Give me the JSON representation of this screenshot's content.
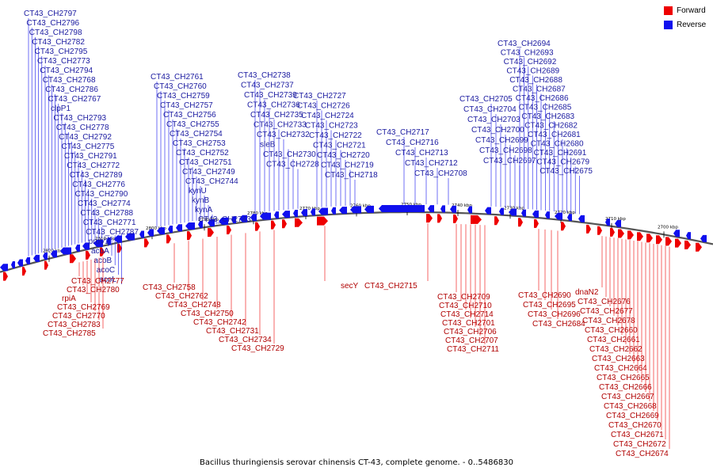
{
  "legend": {
    "forward": {
      "label": "Forward",
      "color": "#ee0000"
    },
    "reverse": {
      "label": "Reverse",
      "color": "#1010ee"
    }
  },
  "caption": "Bacillus thuringiensis serovar chinensis CT-43, complete genome. - 0..5486830",
  "colors": {
    "forward": "#ee0000",
    "reverse": "#1010ee",
    "axis": "#555555"
  },
  "diagram_data": {
    "type": "linear-genome-map",
    "ticks": [
      "2820 kbp",
      "2810 kbp",
      "2800 kbp",
      "2790 kbp",
      "2780 kbp",
      "2770 kbp",
      "2760 kbp",
      "2750 kbp",
      "2740 kbp",
      "2730 kbp",
      "2720 kbp",
      "2710 kbp",
      "2700 kbp"
    ],
    "reverse_labels": [
      "CT43_CH2797",
      "CT43_CH2796",
      "CT43_CH2798",
      "CT43_CH2782",
      "CT43_CH2795",
      "CT43_CH2773",
      "CT43_CH2794",
      "CT43_CH2768",
      "CT43_CH2786",
      "CT43_CH2767",
      "clpP1",
      "CT43_CH2793",
      "CT43_CH2778",
      "CT43_CH2792",
      "CT43_CH2775",
      "CT43_CH2791",
      "CT43_CH2772",
      "CT43_CH2789",
      "CT43_CH2776",
      "CT43_CH2790",
      "CT43_CH2774",
      "CT43_CH2788",
      "CT43_CH2771",
      "CT43_CH2787",
      "proV2",
      "acoA",
      "acoB",
      "acoC",
      "acoL",
      "CT43_CH2761",
      "CT43_CH2760",
      "CT43_CH2759",
      "CT43_CH2757",
      "CT43_CH2756",
      "CT43_CH2755",
      "CT43_CH2754",
      "CT43_CH2753",
      "CT43_CH2752",
      "CT43_CH2751",
      "CT43_CH2749",
      "CT43_CH2744",
      "kynU",
      "kynB",
      "kynA",
      "CT43_CH2743",
      "CT43_CH2738",
      "CT43_CH2737",
      "CT43_CH2739",
      "CT43_CH2736",
      "CT43_CH2735",
      "CT43_CH2733",
      "CT43_CH2732",
      "sleB",
      "CT43_CH2730",
      "CT43_CH2728",
      "CT43_CH2727",
      "CT43_CH2726",
      "CT43_CH2724",
      "CT43_CH2723",
      "CT43_CH2722",
      "CT43_CH2721",
      "CT43_CH2720",
      "CT43_CH2719",
      "CT43_CH2718",
      "CT43_CH2717",
      "CT43_CH2716",
      "CT43_CH2713",
      "CT43_CH2712",
      "CT43_CH2708",
      "CT43_CH2705",
      "CT43_CH2704",
      "CT43_CH2703",
      "CT43_CH2700",
      "CT43_CH2699",
      "CT43_CH2698",
      "CT43_CH2697",
      "CT43_CH2694",
      "CT43_CH2693",
      "CT43_CH2692",
      "CT43_CH2689",
      "CT43_CH2688",
      "CT43_CH2687",
      "CT43_CH2686",
      "CT43_CH2685",
      "CT43_CH2683",
      "CT43_CH2682",
      "CT43_CH2681",
      "CT43_CH2680",
      "CT43_CH2691",
      "CT43_CH2679",
      "CT43_CH2675"
    ],
    "forward_labels": [
      "CT43_CH2777",
      "CT43_CH2780",
      "rpiA",
      "CT43_CH2769",
      "CT43_CH2770",
      "CT43_CH2783",
      "CT43_CH2785",
      "CT43_CH2758",
      "CT43_CH2762",
      "CT43_CH2748",
      "CT43_CH2750",
      "CT43_CH2742",
      "CT43_CH2731",
      "CT43_CH2734",
      "CT43_CH2729",
      "secY",
      "CT43_CH2715",
      "CT43_CH2709",
      "CT43_CH2710",
      "CT43_CH2714",
      "CT43_CH2701",
      "CT43_CH2706",
      "CT43_CH2707",
      "CT43_CH2711",
      "CT43_CH2690",
      "CT43_CH2695",
      "CT43_CH2696",
      "CT43_CH2684",
      "dnaN2",
      "CT43_CH2676",
      "CT43_CH2677",
      "CT43_CH2678",
      "CT43_CH2660",
      "CT43_CH2661",
      "CT43_CH2662",
      "CT43_CH2663",
      "CT43_CH2664",
      "CT43_CH2665",
      "CT43_CH2666",
      "CT43_CH2667",
      "CT43_CH2668",
      "CT43_CH2669",
      "CT43_CH2670",
      "CT43_CH2671",
      "CT43_CH2672",
      "CT43_CH2674"
    ]
  }
}
